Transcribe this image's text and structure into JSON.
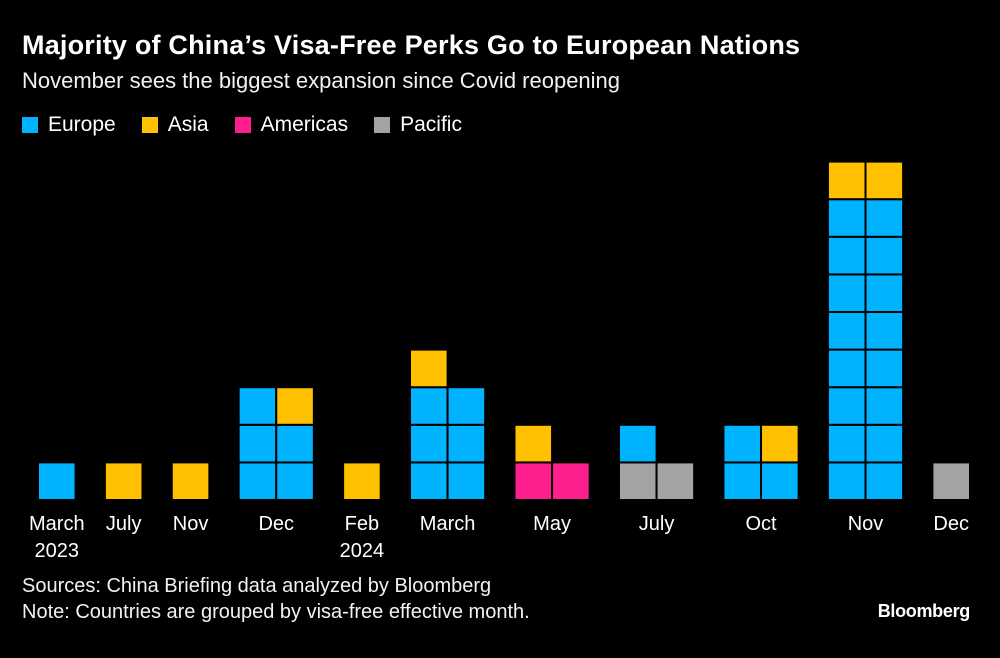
{
  "chart_data": {
    "type": "bar",
    "title": "Majority of China’s Visa-Free Perks Go to European Nations",
    "subtitle": "November sees the biggest expansion since Covid reopening",
    "legend": [
      {
        "name": "Europe",
        "color": "#00b3ff"
      },
      {
        "name": "Asia",
        "color": "#ffc000"
      },
      {
        "name": "Americas",
        "color": "#ff1e8e"
      },
      {
        "name": "Pacific",
        "color": "#a3a3a3"
      }
    ],
    "categories": [
      {
        "label": [
          "March",
          "2023"
        ],
        "columns": [
          [
            "Europe"
          ]
        ]
      },
      {
        "label": [
          "July"
        ],
        "columns": [
          [
            "Asia"
          ]
        ]
      },
      {
        "label": [
          "Nov"
        ],
        "columns": [
          [
            "Asia"
          ]
        ]
      },
      {
        "label": [
          "Dec"
        ],
        "columns": [
          [
            "Europe",
            "Europe",
            "Europe"
          ],
          [
            "Europe",
            "Europe",
            "Asia"
          ]
        ]
      },
      {
        "label": [
          "Feb",
          "2024"
        ],
        "columns": [
          [
            "Asia"
          ]
        ]
      },
      {
        "label": [
          "March"
        ],
        "columns": [
          [
            "Europe",
            "Europe",
            "Europe",
            "Asia"
          ],
          [
            "Europe",
            "Europe",
            "Europe"
          ]
        ]
      },
      {
        "label": [
          "May"
        ],
        "columns": [
          [
            "Americas",
            "Asia"
          ],
          [
            "Americas"
          ]
        ]
      },
      {
        "label": [
          "July"
        ],
        "columns": [
          [
            "Pacific",
            "Europe"
          ],
          [
            "Pacific"
          ]
        ]
      },
      {
        "label": [
          "Oct"
        ],
        "columns": [
          [
            "Europe",
            "Europe"
          ],
          [
            "Europe",
            "Asia"
          ]
        ]
      },
      {
        "label": [
          "Nov"
        ],
        "columns": [
          [
            "Europe",
            "Europe",
            "Europe",
            "Europe",
            "Europe",
            "Europe",
            "Europe",
            "Europe",
            "Asia"
          ],
          [
            "Europe",
            "Europe",
            "Europe",
            "Europe",
            "Europe",
            "Europe",
            "Europe",
            "Europe",
            "Asia"
          ]
        ]
      },
      {
        "label": [
          "Dec"
        ],
        "columns": [
          [
            "Pacific"
          ]
        ]
      }
    ],
    "series": [
      {
        "name": "Europe",
        "values": [
          1,
          0,
          0,
          5,
          0,
          6,
          0,
          1,
          3,
          16,
          0
        ]
      },
      {
        "name": "Asia",
        "values": [
          0,
          1,
          1,
          1,
          1,
          1,
          1,
          0,
          1,
          2,
          0
        ]
      },
      {
        "name": "Americas",
        "values": [
          0,
          0,
          0,
          0,
          0,
          0,
          2,
          0,
          0,
          0,
          0
        ]
      },
      {
        "name": "Pacific",
        "values": [
          0,
          0,
          0,
          0,
          0,
          0,
          0,
          2,
          0,
          0,
          1
        ]
      }
    ],
    "source": "Sources: China Briefing data analyzed by Bloomberg",
    "note": "Note: Countries are grouped by visa-free effective month.",
    "brand": "Bloomberg"
  }
}
